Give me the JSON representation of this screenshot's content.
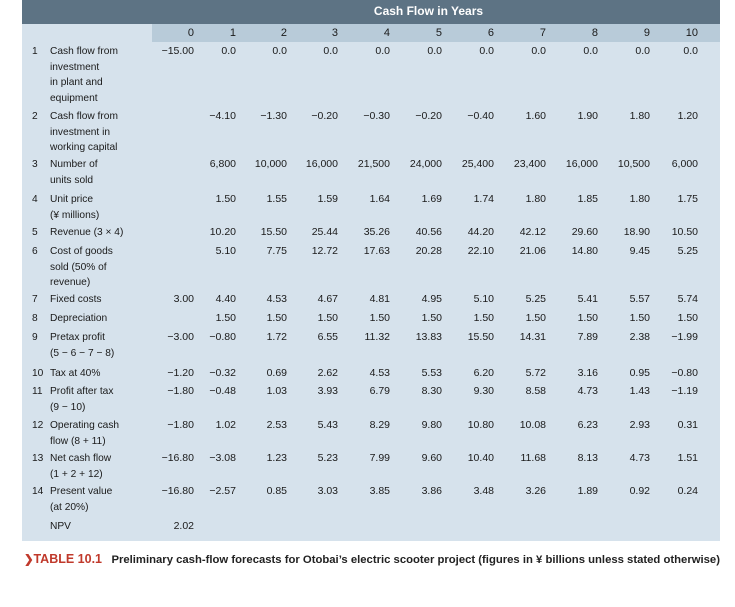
{
  "table": {
    "header_title": "Cash Flow in Years",
    "years": [
      "0",
      "1",
      "2",
      "3",
      "4",
      "5",
      "6",
      "7",
      "8",
      "9",
      "10"
    ],
    "rows": [
      {
        "num": "1",
        "label": "Cash flow from investment in plant and equipment",
        "label_lines": [
          "Cash flow from",
          "investment",
          "in plant and",
          "equipment"
        ],
        "values": [
          "−15.00",
          "0.0",
          "0.0",
          "0.0",
          "0.0",
          "0.0",
          "0.0",
          "0.0",
          "0.0",
          "0.0",
          "0.0"
        ]
      },
      {
        "num": "2",
        "label": "Cash flow from investment in working capital",
        "label_lines": [
          "Cash flow from",
          "investment in",
          "working capital"
        ],
        "values": [
          "",
          "−4.10",
          "−1.30",
          "−0.20",
          "−0.30",
          "−0.20",
          "−0.40",
          "1.60",
          "1.90",
          "1.80",
          "1.20"
        ]
      },
      {
        "num": "3",
        "label": "Number of units sold",
        "label_lines": [
          "Number of",
          "units sold"
        ],
        "values": [
          "",
          "6,800",
          "10,000",
          "16,000",
          "21,500",
          "24,000",
          "25,400",
          "23,400",
          "16,000",
          "10,500",
          "6,000"
        ]
      },
      {
        "num": "4",
        "label": "Unit price (¥ millions)",
        "label_lines": [
          "Unit price",
          "(¥ millions)"
        ],
        "values": [
          "",
          "1.50",
          "1.55",
          "1.59",
          "1.64",
          "1.69",
          "1.74",
          "1.80",
          "1.85",
          "1.80",
          "1.75"
        ]
      },
      {
        "num": "5",
        "label": "Revenue (3 × 4)",
        "label_lines": [
          "Revenue (3 × 4)"
        ],
        "values": [
          "",
          "10.20",
          "15.50",
          "25.44",
          "35.26",
          "40.56",
          "44.20",
          "42.12",
          "29.60",
          "18.90",
          "10.50"
        ]
      },
      {
        "num": "6",
        "label": "Cost of goods sold (50% of revenue)",
        "label_lines": [
          "Cost of goods",
          "sold (50% of",
          "revenue)"
        ],
        "values": [
          "",
          "5.10",
          "7.75",
          "12.72",
          "17.63",
          "20.28",
          "22.10",
          "21.06",
          "14.80",
          "9.45",
          "5.25"
        ]
      },
      {
        "num": "7",
        "label": "Fixed costs",
        "label_lines": [
          "Fixed costs"
        ],
        "values": [
          "3.00",
          "4.40",
          "4.53",
          "4.67",
          "4.81",
          "4.95",
          "5.10",
          "5.25",
          "5.41",
          "5.57",
          "5.74"
        ]
      },
      {
        "num": "8",
        "label": "Depreciation",
        "label_lines": [
          "Depreciation"
        ],
        "values": [
          "",
          "1.50",
          "1.50",
          "1.50",
          "1.50",
          "1.50",
          "1.50",
          "1.50",
          "1.50",
          "1.50",
          "1.50"
        ]
      },
      {
        "num": "9",
        "label": "Pretax profit (5 − 6 − 7 − 8)",
        "label_lines": [
          "Pretax profit",
          "(5 − 6 − 7 − 8)"
        ],
        "values": [
          "−3.00",
          "−0.80",
          "1.72",
          "6.55",
          "11.32",
          "13.83",
          "15.50",
          "14.31",
          "7.89",
          "2.38",
          "−1.99"
        ]
      },
      {
        "num": "10",
        "label": "Tax at 40%",
        "label_lines": [
          "Tax at 40%"
        ],
        "values": [
          "−1.20",
          "−0.32",
          "0.69",
          "2.62",
          "4.53",
          "5.53",
          "6.20",
          "5.72",
          "3.16",
          "0.95",
          "−0.80"
        ]
      },
      {
        "num": "11",
        "label": "Profit after tax (9 − 10)",
        "label_lines": [
          "Profit after tax",
          "(9 − 10)"
        ],
        "values": [
          "−1.80",
          "−0.48",
          "1.03",
          "3.93",
          "6.79",
          "8.30",
          "9.30",
          "8.58",
          "4.73",
          "1.43",
          "−1.19"
        ]
      },
      {
        "num": "12",
        "label": "Operating cash flow (8 + 11)",
        "label_lines": [
          "Operating cash",
          "flow (8 + 11)"
        ],
        "values": [
          "−1.80",
          "1.02",
          "2.53",
          "5.43",
          "8.29",
          "9.80",
          "10.80",
          "10.08",
          "6.23",
          "2.93",
          "0.31"
        ]
      },
      {
        "num": "13",
        "label": "Net cash flow (1 + 2 + 12)",
        "label_lines": [
          "Net cash flow",
          "(1 + 2 + 12)"
        ],
        "values": [
          "−16.80",
          "−3.08",
          "1.23",
          "5.23",
          "7.99",
          "9.60",
          "10.40",
          "11.68",
          "8.13",
          "4.73",
          "1.51"
        ]
      },
      {
        "num": "14",
        "label": "Present value (at 20%)",
        "label_lines": [
          "Present value",
          "(at 20%)"
        ],
        "values": [
          "−16.80",
          "−2.57",
          "0.85",
          "3.03",
          "3.85",
          "3.86",
          "3.48",
          "3.26",
          "1.89",
          "0.92",
          "0.24"
        ]
      },
      {
        "num": "",
        "label": "NPV",
        "label_lines": [
          "NPV"
        ],
        "values": [
          "2.02",
          "",
          "",
          "",
          "",
          "",
          "",
          "",
          "",
          "",
          ""
        ]
      }
    ]
  },
  "caption": {
    "arrow": "❯",
    "tag": "TABLE 10.1",
    "text": "Preliminary cash-flow forecasts for Otobai’s electric scooter project (figures in ¥ billions unless stated otherwise)"
  }
}
